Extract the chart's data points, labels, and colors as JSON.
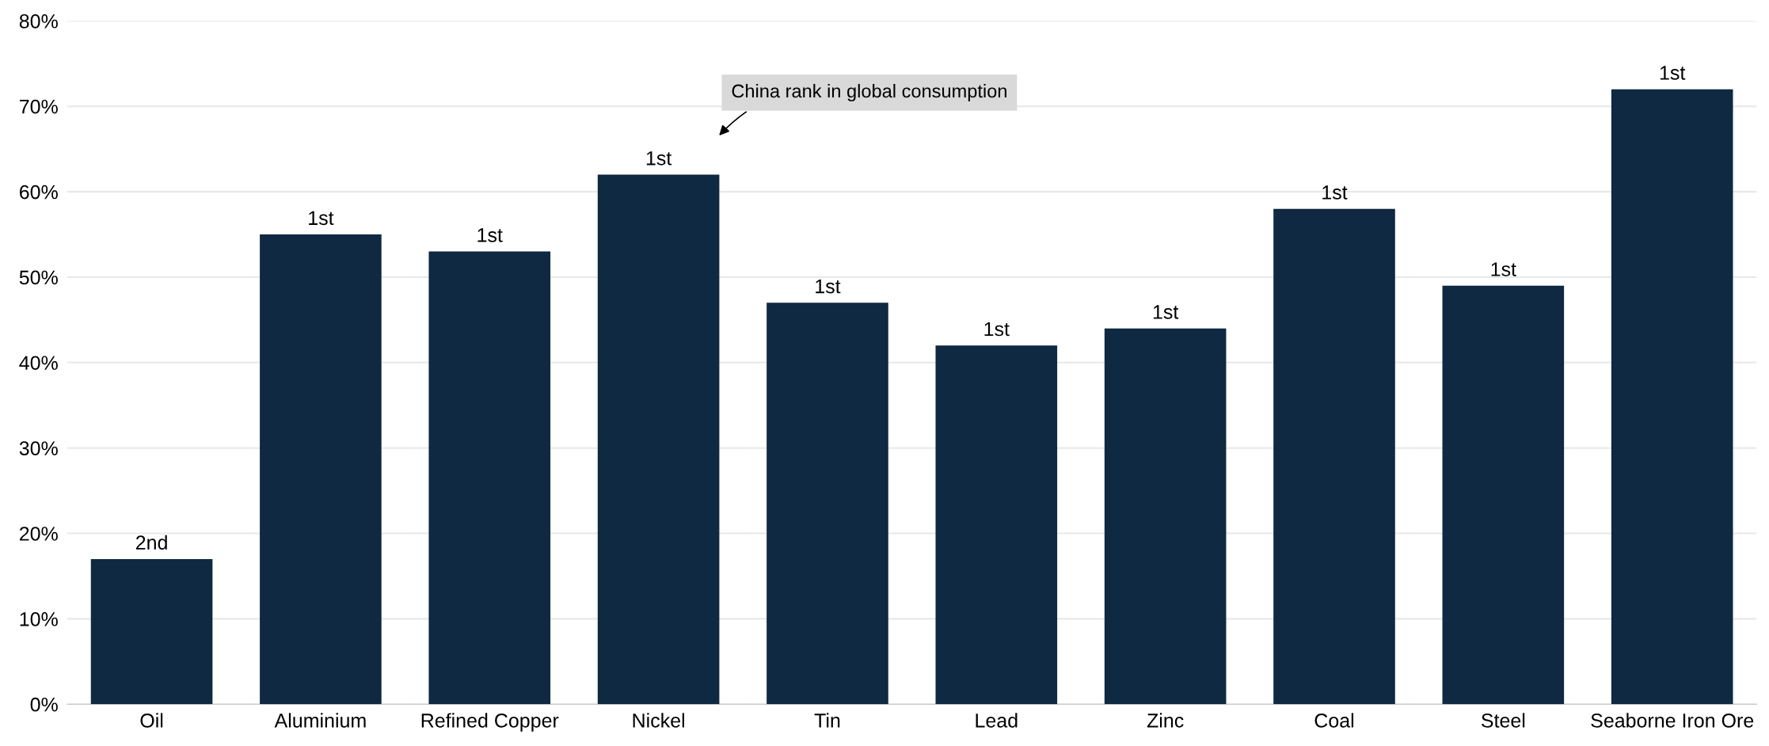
{
  "chart_data": {
    "type": "bar",
    "categories": [
      "Oil",
      "Aluminium",
      "Refined Copper",
      "Nickel",
      "Tin",
      "Lead",
      "Zinc",
      "Coal",
      "Steel",
      "Seaborne Iron Ore"
    ],
    "values": [
      17,
      55,
      53,
      62,
      47,
      42,
      44,
      58,
      49,
      72
    ],
    "color": "#0f2942",
    "ylim": [
      0,
      80
    ],
    "yticks": [
      {
        "value": 0,
        "label": "0%"
      },
      {
        "value": 10,
        "label": "10%"
      },
      {
        "value": 20,
        "label": "20%"
      },
      {
        "value": 30,
        "label": "30%"
      },
      {
        "value": 40,
        "label": "40%"
      },
      {
        "value": 50,
        "label": "50%"
      },
      {
        "value": 60,
        "label": "60%"
      },
      {
        "value": 70,
        "label": "70%"
      },
      {
        "value": 80,
        "label": "80%"
      }
    ],
    "grid": "y",
    "annotations": [
      "China rank in global consumption",
      {
        "text": "2nd",
        "x": "Oil",
        "y": 17
      },
      {
        "text": "1st",
        "x": "Aluminium",
        "y": 55
      },
      {
        "text": "1st",
        "x": "Refined Copper",
        "y": 53
      },
      {
        "text": "1st",
        "x": "Nickel",
        "y": 62
      },
      {
        "text": "1st",
        "x": "Tin",
        "y": 47
      },
      {
        "text": "1st",
        "x": "Lead",
        "y": 42
      },
      {
        "text": "1st",
        "x": "Zinc",
        "y": 44
      },
      {
        "text": "1st",
        "x": "Coal",
        "y": 58
      },
      {
        "text": "1st",
        "x": "Steel",
        "y": 49
      },
      {
        "text": "1st",
        "x": "Seaborne Iron Ore",
        "y": 72
      }
    ]
  }
}
